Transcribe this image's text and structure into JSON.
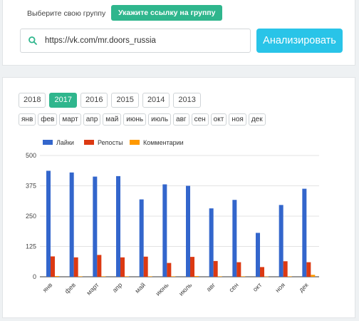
{
  "header": {
    "tab_choose_group": "Выберите свою группу",
    "tab_group_link": "Укажите ссылку на группу"
  },
  "search": {
    "value": "https://vk.com/mr.doors_russia",
    "icon": "search-icon",
    "analyze_label": "Анализировать"
  },
  "colors": {
    "accent_green": "#2fb68d",
    "accent_blue": "#29c4e8",
    "likes": "#3366cc",
    "reposts": "#dc3912",
    "comments": "#ff9900"
  },
  "years": [
    {
      "label": "2018",
      "active": false
    },
    {
      "label": "2017",
      "active": true
    },
    {
      "label": "2016",
      "active": false
    },
    {
      "label": "2015",
      "active": false
    },
    {
      "label": "2014",
      "active": false
    },
    {
      "label": "2013",
      "active": false
    }
  ],
  "months": [
    "янв",
    "фев",
    "март",
    "апр",
    "май",
    "июнь",
    "июль",
    "авг",
    "сен",
    "окт",
    "ноя",
    "дек"
  ],
  "chart_data": {
    "type": "bar",
    "categories": [
      "янв",
      "фев",
      "март",
      "апр",
      "май",
      "июнь",
      "июль",
      "авг",
      "сен",
      "окт",
      "ноя",
      "дек"
    ],
    "series": [
      {
        "name": "Лайки",
        "values": [
          437,
          430,
          413,
          415,
          319,
          381,
          375,
          282,
          317,
          181,
          296,
          363
        ]
      },
      {
        "name": "Репосты",
        "values": [
          84,
          80,
          90,
          80,
          83,
          57,
          82,
          65,
          60,
          40,
          64,
          60
        ]
      },
      {
        "name": "Комментарии",
        "values": [
          3,
          2,
          2,
          2,
          2,
          2,
          3,
          2,
          2,
          1,
          2,
          8
        ]
      }
    ],
    "yticks": [
      "0",
      "125",
      "250",
      "375",
      "500"
    ],
    "ylim": [
      0,
      500
    ],
    "legend": "top-left",
    "grid": true
  }
}
